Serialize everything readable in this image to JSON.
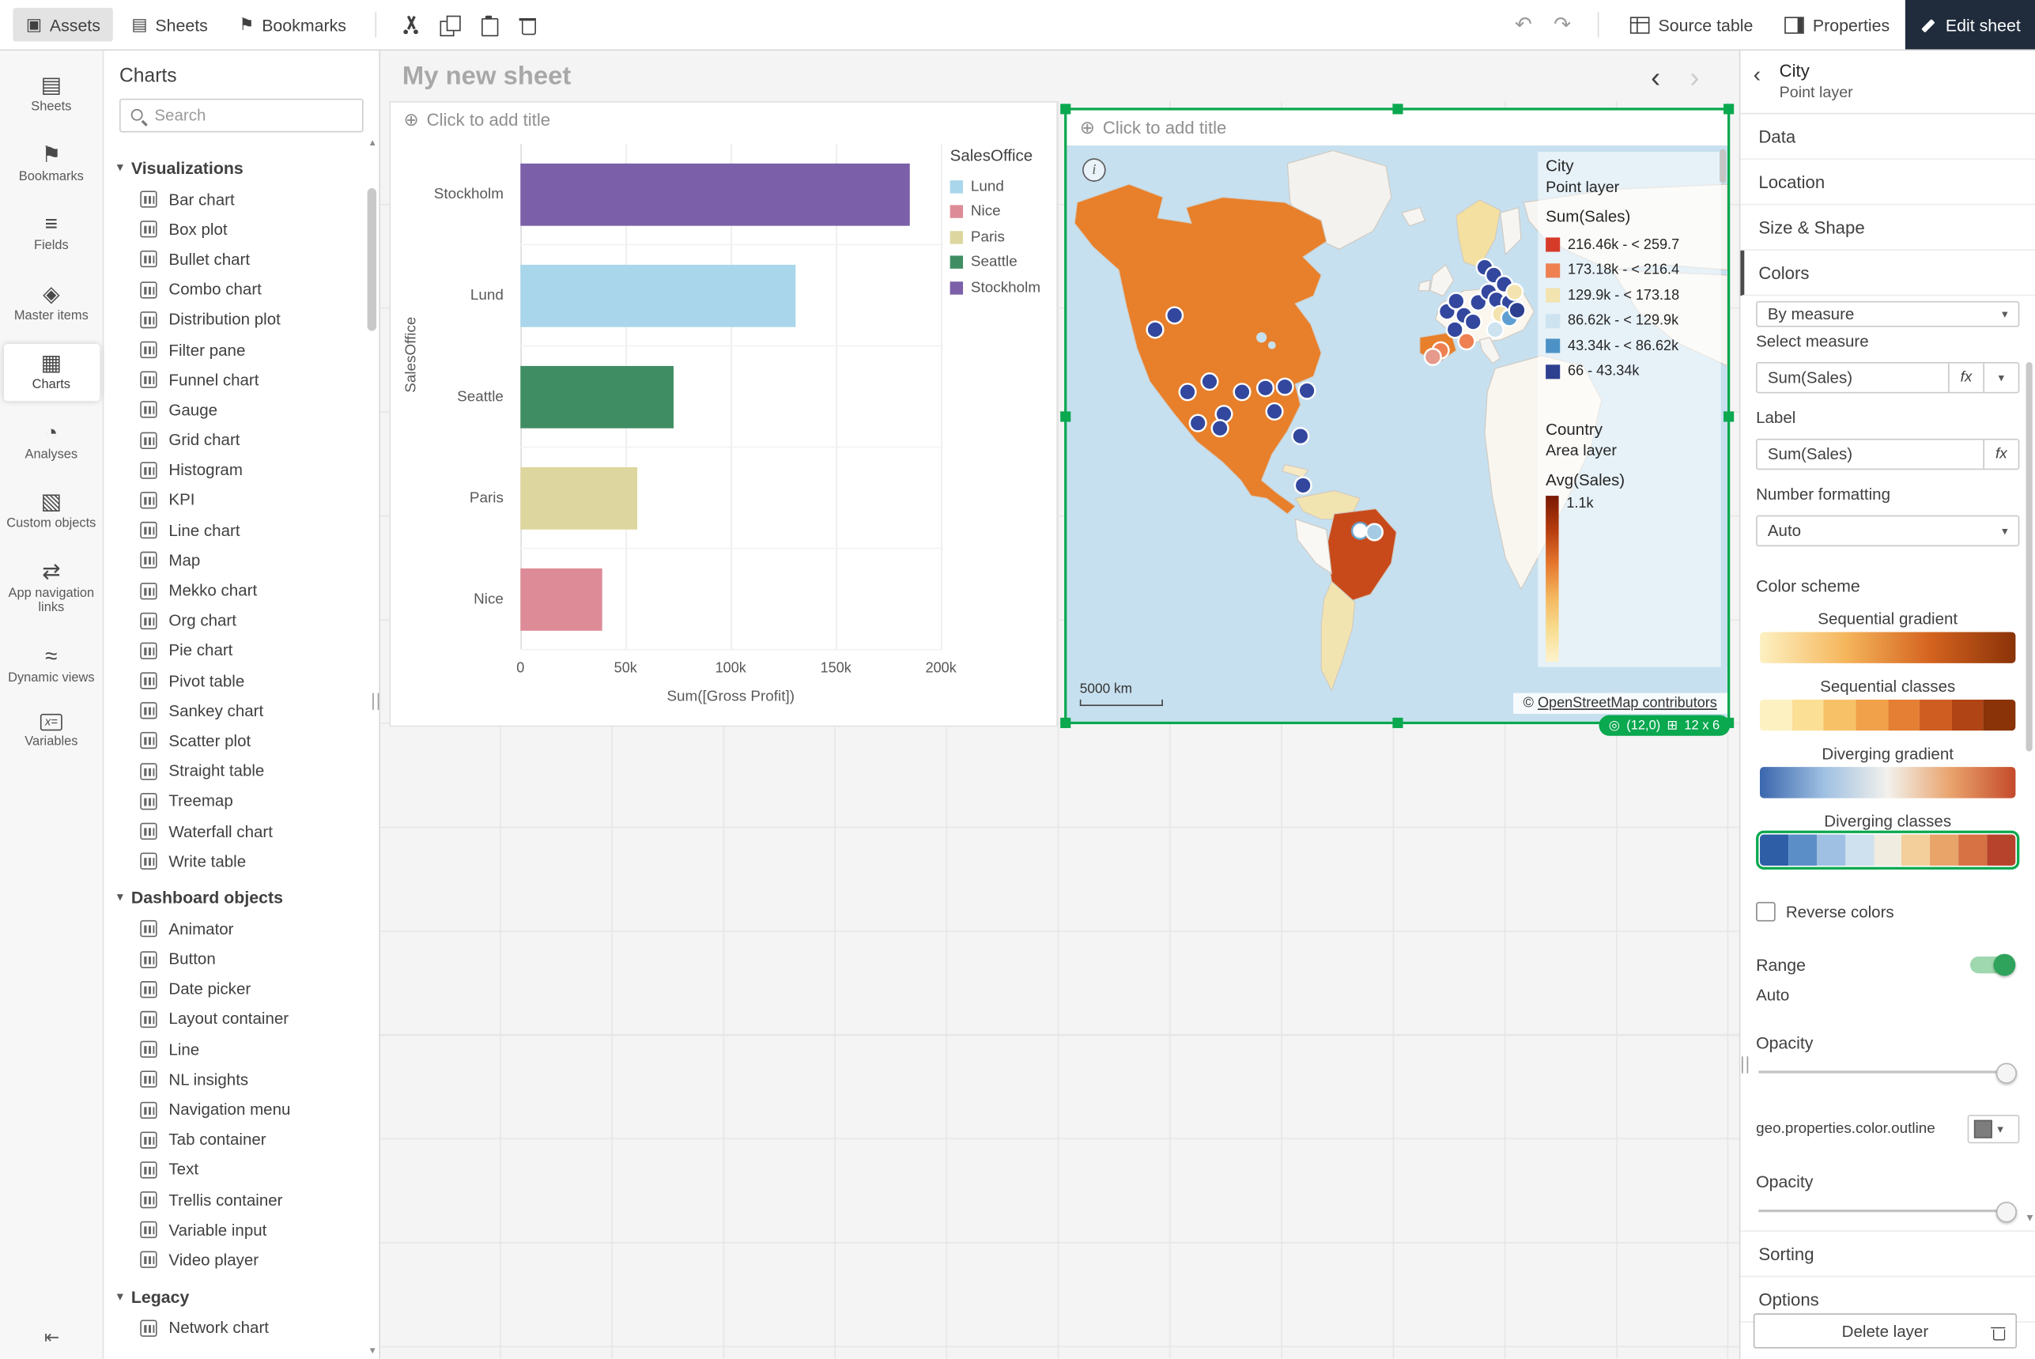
{
  "topbar": {
    "tabs": [
      {
        "icon": "assets",
        "label": "Assets",
        "active": true
      },
      {
        "icon": "sheets",
        "label": "Sheets",
        "active": false
      },
      {
        "icon": "bookmarks",
        "label": "Bookmarks",
        "active": false
      }
    ],
    "source_table_label": "Source table",
    "properties_label": "Properties",
    "edit_sheet_label": "Edit sheet"
  },
  "rail": {
    "items": [
      {
        "icon": "sheets",
        "label": "Sheets",
        "active": false
      },
      {
        "icon": "bookmarks",
        "label": "Bookmarks",
        "active": false
      },
      {
        "icon": "fields",
        "label": "Fields",
        "active": false
      },
      {
        "icon": "master-items",
        "label": "Master items",
        "active": false
      },
      {
        "icon": "charts",
        "label": "Charts",
        "active": true
      },
      {
        "icon": "analyses",
        "label": "Analyses",
        "active": false
      },
      {
        "icon": "custom-objects",
        "label": "Custom objects",
        "active": false
      },
      {
        "icon": "app-navigation-links",
        "label": "App navigation links",
        "active": false
      },
      {
        "icon": "dynamic-views",
        "label": "Dynamic views",
        "active": false
      },
      {
        "icon": "variables",
        "label": "Variables",
        "active": false
      }
    ]
  },
  "assets_panel": {
    "title": "Charts",
    "search_placeholder": "Search",
    "sections": [
      {
        "label": "Visualizations",
        "items": [
          "Bar chart",
          "Box plot",
          "Bullet chart",
          "Combo chart",
          "Distribution plot",
          "Filter pane",
          "Funnel chart",
          "Gauge",
          "Grid chart",
          "Histogram",
          "KPI",
          "Line chart",
          "Map",
          "Mekko chart",
          "Org chart",
          "Pie chart",
          "Pivot table",
          "Sankey chart",
          "Scatter plot",
          "Straight table",
          "Treemap",
          "Waterfall chart",
          "Write table"
        ]
      },
      {
        "label": "Dashboard objects",
        "items": [
          "Animator",
          "Button",
          "Date picker",
          "Layout container",
          "Line",
          "NL insights",
          "Navigation menu",
          "Tab container",
          "Text",
          "Trellis container",
          "Variable input",
          "Video player"
        ]
      },
      {
        "label": "Legacy",
        "items": [
          "Network chart"
        ]
      }
    ]
  },
  "sheet": {
    "title": "My new sheet"
  },
  "bar_object": {
    "title_placeholder": "Click to add title"
  },
  "map_object": {
    "title_placeholder": "Click to add title",
    "scale_label": "5000 km",
    "attribution_prefix": "©",
    "attribution_link": "OpenStreetMap contributors",
    "badge": {
      "position": "(12,0)",
      "size": "12 x 6"
    },
    "point_legend": {
      "title": "City",
      "subtitle": "Point layer",
      "measure": "Sum(Sales)",
      "classes": [
        {
          "color": "#d63b2a",
          "label": "216.46k - < 259.7"
        },
        {
          "color": "#ee8051",
          "label": "173.18k - < 216.4"
        },
        {
          "color": "#f3e3ae",
          "label": "129.9k - < 173.18"
        },
        {
          "color": "#cde3f0",
          "label": "86.62k - < 129.9k"
        },
        {
          "color": "#4d92c6",
          "label": "43.34k - < 86.62k"
        },
        {
          "color": "#2d3f8f",
          "label": "66 - 43.34k"
        }
      ]
    },
    "area_legend": {
      "title": "Country",
      "subtitle": "Area layer",
      "measure": "Avg(Sales)",
      "max_label": "1.1k"
    },
    "points": [
      {
        "x": 68,
        "y": 142,
        "c": "#33479e"
      },
      {
        "x": 83,
        "y": 131,
        "c": "#33479e"
      },
      {
        "x": 110,
        "y": 182,
        "c": "#33479e"
      },
      {
        "x": 93,
        "y": 190,
        "c": "#33479e"
      },
      {
        "x": 121,
        "y": 207,
        "c": "#33479e"
      },
      {
        "x": 135,
        "y": 190,
        "c": "#33479e"
      },
      {
        "x": 153,
        "y": 187,
        "c": "#33479e"
      },
      {
        "x": 168,
        "y": 186,
        "c": "#33479e"
      },
      {
        "x": 101,
        "y": 214,
        "c": "#33479e"
      },
      {
        "x": 118,
        "y": 218,
        "c": "#33479e"
      },
      {
        "x": 180,
        "y": 224,
        "c": "#33479e"
      },
      {
        "x": 185,
        "y": 189,
        "c": "#33479e"
      },
      {
        "x": 160,
        "y": 205,
        "c": "#33479e"
      },
      {
        "x": 182,
        "y": 262,
        "c": "#33479e"
      },
      {
        "x": 293,
        "y": 128,
        "c": "#33479e"
      },
      {
        "x": 300,
        "y": 120,
        "c": "#33479e"
      },
      {
        "x": 306,
        "y": 131,
        "c": "#33479e"
      },
      {
        "x": 313,
        "y": 136,
        "c": "#33479e"
      },
      {
        "x": 299,
        "y": 142,
        "c": "#33479e"
      },
      {
        "x": 317,
        "y": 121,
        "c": "#33479e"
      },
      {
        "x": 325,
        "y": 113,
        "c": "#33479e"
      },
      {
        "x": 331,
        "y": 119,
        "c": "#33479e"
      },
      {
        "x": 322,
        "y": 94,
        "c": "#33479e"
      },
      {
        "x": 329,
        "y": 100,
        "c": "#33479e"
      },
      {
        "x": 341,
        "y": 121,
        "c": "#33479e"
      },
      {
        "x": 337,
        "y": 107,
        "c": "#33479e"
      },
      {
        "x": 308,
        "y": 151,
        "c": "#ee8051"
      },
      {
        "x": 288,
        "y": 158,
        "c": "#ee8051"
      },
      {
        "x": 282,
        "y": 163,
        "c": "#e59a8b"
      },
      {
        "x": 334,
        "y": 130,
        "c": "#f3e3ae"
      },
      {
        "x": 330,
        "y": 142,
        "c": "#cde3f0"
      },
      {
        "x": 345,
        "y": 113,
        "c": "#f3e3ae"
      },
      {
        "x": 341,
        "y": 133,
        "c": "#5e9fd1"
      },
      {
        "x": 347,
        "y": 127,
        "c": "#2d3f8f"
      },
      {
        "x": 226,
        "y": 297,
        "c": "#ffffff",
        "s": "#6aa0c8"
      },
      {
        "x": 237,
        "y": 298,
        "c": "#a5cbe4"
      }
    ]
  },
  "props": {
    "title": "City",
    "subtitle": "Point layer",
    "sections": [
      "Data",
      "Location",
      "Size & Shape",
      "Colors"
    ],
    "colors": {
      "mode_value": "By measure",
      "select_measure_label": "Select measure",
      "measure_value": "Sum(Sales)",
      "fx": "fx",
      "label_label": "Label",
      "label_value": "Sum(Sales)",
      "number_formatting_label": "Number formatting",
      "number_formatting_value": "Auto",
      "color_scheme_label": "Color scheme",
      "schemes": [
        {
          "label": "Sequential gradient",
          "type": "gradient",
          "selected": false,
          "colors": [
            "#fdf1c2",
            "#f5b65c",
            "#d4631f",
            "#8a3208"
          ]
        },
        {
          "label": "Sequential classes",
          "type": "classes",
          "selected": false,
          "colors": [
            "#fdf1c2",
            "#fbdf94",
            "#f7c267",
            "#f0a14a",
            "#e47f33",
            "#cf5d22",
            "#b14415",
            "#8a3208"
          ]
        },
        {
          "label": "Diverging gradient",
          "type": "gradient",
          "selected": false,
          "colors": [
            "#3a66ad",
            "#9fc0e2",
            "#f2f1ec",
            "#e9a26b",
            "#c44a2b"
          ]
        },
        {
          "label": "Diverging classes",
          "type": "classes",
          "selected": true,
          "colors": [
            "#2d5ea6",
            "#5b8ec7",
            "#9fc0e2",
            "#cfe0ee",
            "#f1ece0",
            "#f3cf9b",
            "#e8a469",
            "#d67243",
            "#b8432d"
          ]
        }
      ],
      "reverse_label": "Reverse colors",
      "range_label": "Range",
      "range_value": "Auto",
      "opacity_label": "Opacity",
      "outline_label": "geo.properties.color.outline",
      "opacity2_label": "Opacity"
    },
    "more_sections": [
      "Sorting",
      "Options"
    ],
    "delete_label": "Delete layer"
  },
  "chart_data": [
    {
      "type": "bar",
      "orientation": "horizontal",
      "title": "",
      "categories": [
        "Stockholm",
        "Lund",
        "Seattle",
        "Paris",
        "Nice"
      ],
      "values": [
        185000,
        131000,
        73000,
        55500,
        39000
      ],
      "colors": [
        "#7b5fa8",
        "#a9d6ea",
        "#3f8e63",
        "#ddd79f",
        "#dd8c97"
      ],
      "xlabel": "Sum([Gross Profit])",
      "ylabel": "SalesOffice",
      "xlim": [
        0,
        200000
      ],
      "xticks": [
        "0",
        "50k",
        "100k",
        "150k",
        "200k"
      ],
      "grid": true,
      "legend": {
        "title": "SalesOffice",
        "position": "top-right",
        "entries": [
          {
            "label": "Lund",
            "color": "#a9d6ea"
          },
          {
            "label": "Nice",
            "color": "#dd8c97"
          },
          {
            "label": "Paris",
            "color": "#ddd79f"
          },
          {
            "label": "Seattle",
            "color": "#3f8e63"
          },
          {
            "label": "Stockholm",
            "color": "#7b5fa8"
          }
        ]
      }
    },
    {
      "type": "map",
      "title": "",
      "layers": [
        {
          "name": "City",
          "kind": "point",
          "measure": "Sum(Sales)",
          "classes": [
            "216.46k - < 259.7",
            "173.18k - < 216.4",
            "129.9k - < 173.18",
            "86.62k - < 129.9k",
            "43.34k - < 86.62k",
            "66 - 43.34k"
          ]
        },
        {
          "name": "Country",
          "kind": "area",
          "measure": "Avg(Sales)",
          "legend_max": "1.1k"
        }
      ],
      "scale": "5000 km",
      "attribution": "© OpenStreetMap contributors"
    }
  ]
}
